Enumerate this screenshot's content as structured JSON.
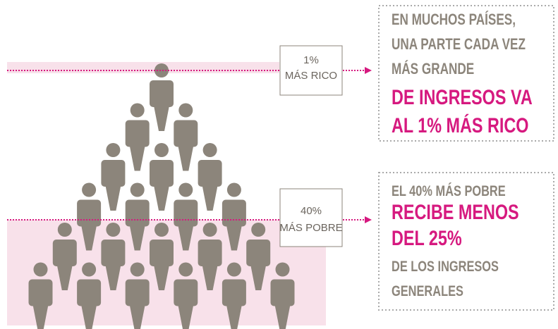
{
  "labels": {
    "top": [
      "1%",
      "MÁS RICO"
    ],
    "bottom": [
      "40%",
      "MÁS POBRE"
    ]
  },
  "top_box": {
    "lines": [
      "EN MUCHOS PAÍSES,",
      "UNA PARTE CADA VEZ",
      "MÁS GRANDE"
    ],
    "highlight": [
      "DE INGRESOS VA",
      "AL 1% MÁS RICO"
    ]
  },
  "bottom_box": {
    "intro": "EL 40% MÁS POBRE",
    "highlight": [
      "RECIBE MENOS",
      "DEL 25%"
    ],
    "lines": [
      "DE LOS INGRESOS",
      "GENERALES"
    ]
  }
}
